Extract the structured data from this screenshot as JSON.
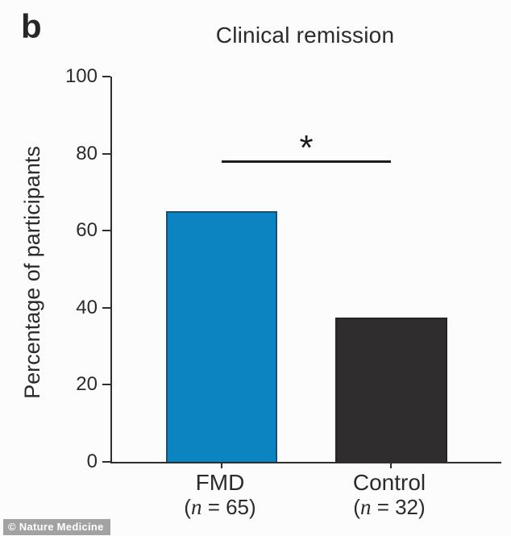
{
  "figure": {
    "panel_label": "b",
    "title": "Clinical remission",
    "y_axis_label": "Percentage of participants",
    "watermark": "© Nature Medicine"
  },
  "chart_data": {
    "type": "bar",
    "title": "Clinical remission",
    "xlabel": "",
    "ylabel": "Percentage of participants",
    "ylim": [
      0,
      100
    ],
    "yticks": [
      0,
      20,
      40,
      60,
      80,
      100
    ],
    "grid": false,
    "legend": "none",
    "categories": [
      "FMD",
      "Control"
    ],
    "category_sublabels": [
      "(n = 65)",
      "(n = 32)"
    ],
    "series": [
      {
        "name": "Percentage of participants",
        "values": [
          65,
          37.5
        ]
      }
    ],
    "bars": [
      {
        "label": "FMD",
        "sub": {
          "open": "(",
          "var": "n",
          "rest": " = 65)"
        },
        "value": 65,
        "color": "#0d84c2",
        "edge_color": "#1d4f6e"
      },
      {
        "label": "Control",
        "sub": {
          "open": "(",
          "var": "n",
          "rest": " = 32)"
        },
        "value": 37.5,
        "color": "#2f2d2e",
        "edge_color": "#262425"
      }
    ],
    "annotations": [
      {
        "type": "significance-bracket",
        "label": "*",
        "y": 78,
        "from": "FMD",
        "to": "Control"
      }
    ]
  },
  "colors": {
    "fmd_bar": "#0d84c2",
    "control_bar": "#2f2d2e",
    "axis": "#2e2e2e",
    "text": "#2b2b2b",
    "background": "#fcfcfc",
    "watermark_bg": "#a2a2a2",
    "watermark_text": "#ffffff"
  }
}
